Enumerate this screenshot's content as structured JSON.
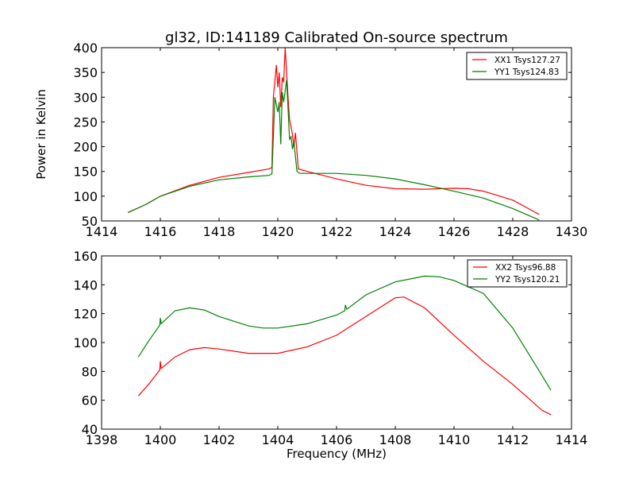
{
  "chart_data": [
    {
      "type": "line",
      "title": "gl32, ID:141189 Calibrated On-source spectrum",
      "xlabel": "",
      "ylabel": "Power in Kelvin",
      "xlim": [
        1414,
        1430
      ],
      "ylim": [
        50,
        400
      ],
      "xticks": [
        1414,
        1416,
        1418,
        1420,
        1422,
        1424,
        1426,
        1428,
        1430
      ],
      "yticks": [
        50,
        100,
        150,
        200,
        250,
        300,
        350,
        400
      ],
      "legend_position": "top-right",
      "series": [
        {
          "name": "XX1 Tsys127.27",
          "color": "#ff0000",
          "x": [
            1414.9,
            1415.5,
            1416,
            1417,
            1418,
            1419,
            1419.7,
            1419.8,
            1419.85,
            1419.95,
            1420.0,
            1420.05,
            1420.1,
            1420.15,
            1420.2,
            1420.25,
            1420.35,
            1420.4,
            1420.45,
            1420.5,
            1420.55,
            1420.6,
            1420.7,
            1421,
            1422,
            1423,
            1424,
            1425,
            1426,
            1426.5,
            1427,
            1428,
            1428.9
          ],
          "y": [
            67,
            83,
            100,
            122,
            138,
            148,
            155,
            158,
            300,
            365,
            320,
            350,
            280,
            340,
            330,
            400,
            300,
            255,
            240,
            225,
            200,
            228,
            155,
            150,
            135,
            122,
            115,
            114,
            116,
            115,
            110,
            92,
            63
          ]
        },
        {
          "name": "YY1 Tsys124.83",
          "color": "#008000",
          "x": [
            1414.9,
            1415.5,
            1416,
            1417,
            1418,
            1419,
            1419.7,
            1419.8,
            1419.85,
            1419.9,
            1420.0,
            1420.05,
            1420.1,
            1420.15,
            1420.2,
            1420.3,
            1420.4,
            1420.45,
            1420.5,
            1420.55,
            1420.65,
            1420.75,
            1421,
            1422,
            1423,
            1424,
            1425,
            1426,
            1427,
            1428,
            1428.9
          ],
          "y": [
            67,
            83,
            100,
            120,
            133,
            139,
            142,
            145,
            220,
            300,
            270,
            290,
            205,
            310,
            290,
            335,
            215,
            220,
            195,
            210,
            150,
            146,
            146,
            146,
            142,
            135,
            123,
            110,
            96,
            75,
            52
          ]
        }
      ]
    },
    {
      "type": "line",
      "title": "",
      "xlabel": "Frequency (MHz)",
      "ylabel": "",
      "xlim": [
        1398,
        1414
      ],
      "ylim": [
        40,
        160
      ],
      "xticks": [
        1398,
        1400,
        1402,
        1404,
        1406,
        1408,
        1410,
        1412,
        1414
      ],
      "yticks": [
        40,
        60,
        80,
        100,
        120,
        140,
        160
      ],
      "legend_position": "top-right",
      "series": [
        {
          "name": "XX2 Tsys96.88",
          "color": "#ff0000",
          "x": [
            1399.25,
            1399.6,
            1399.98,
            1400,
            1400.03,
            1400.5,
            1401,
            1401.5,
            1402,
            1403,
            1404,
            1405,
            1406,
            1407,
            1408,
            1408.3,
            1409,
            1410,
            1411,
            1412,
            1413,
            1413.3
          ],
          "y": [
            63,
            71,
            81,
            87,
            82,
            90,
            95,
            96.5,
            95.5,
            92.5,
            92.5,
            97,
            105,
            118,
            131,
            131.5,
            124,
            105,
            87,
            71,
            53,
            50
          ]
        },
        {
          "name": "YY2 Tsys120.21",
          "color": "#008000",
          "x": [
            1399.25,
            1399.6,
            1399.98,
            1400,
            1400.03,
            1400.5,
            1401,
            1401.5,
            1402,
            1403,
            1403.5,
            1404,
            1405,
            1406,
            1406.28,
            1406.3,
            1406.35,
            1407,
            1408,
            1409,
            1409.5,
            1410,
            1411,
            1412,
            1413,
            1413.3
          ],
          "y": [
            90,
            101,
            112,
            117,
            113,
            122,
            124,
            122.5,
            118,
            111.5,
            110,
            110,
            113,
            119,
            122,
            126,
            123,
            133,
            142,
            146,
            145.5,
            143,
            134,
            110,
            77,
            67
          ]
        }
      ]
    }
  ]
}
